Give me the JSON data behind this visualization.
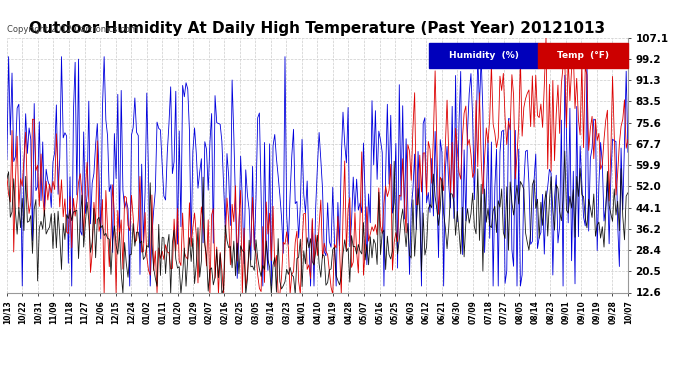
{
  "title": "Outdoor Humidity At Daily High Temperature (Past Year) 20121013",
  "copyright_text": "Copyright 2012 Cartronics.com",
  "yticks": [
    12.6,
    20.5,
    28.4,
    36.2,
    44.1,
    52.0,
    59.9,
    67.7,
    75.6,
    83.5,
    91.3,
    99.2,
    107.1
  ],
  "ymin": 12.6,
  "ymax": 107.1,
  "bg_color": "#ffffff",
  "grid_color": "#cccccc",
  "title_fontsize": 11,
  "legend_labels": [
    "Humidity  (%)",
    "Temp  (°F)"
  ],
  "line_colors": [
    "#0000dd",
    "#dd0000",
    "#000000"
  ],
  "xtick_labels": [
    "10/13",
    "10/22",
    "10/31",
    "11/09",
    "11/18",
    "11/27",
    "12/06",
    "12/15",
    "12/24",
    "01/02",
    "01/11",
    "01/20",
    "01/29",
    "02/07",
    "02/16",
    "02/25",
    "03/05",
    "03/14",
    "03/23",
    "04/01",
    "04/10",
    "04/19",
    "04/28",
    "05/07",
    "05/16",
    "05/25",
    "06/03",
    "06/12",
    "06/21",
    "06/30",
    "07/09",
    "07/18",
    "07/27",
    "08/05",
    "08/14",
    "08/23",
    "09/01",
    "09/10",
    "09/19",
    "09/28",
    "10/07"
  ],
  "n_points": 365
}
